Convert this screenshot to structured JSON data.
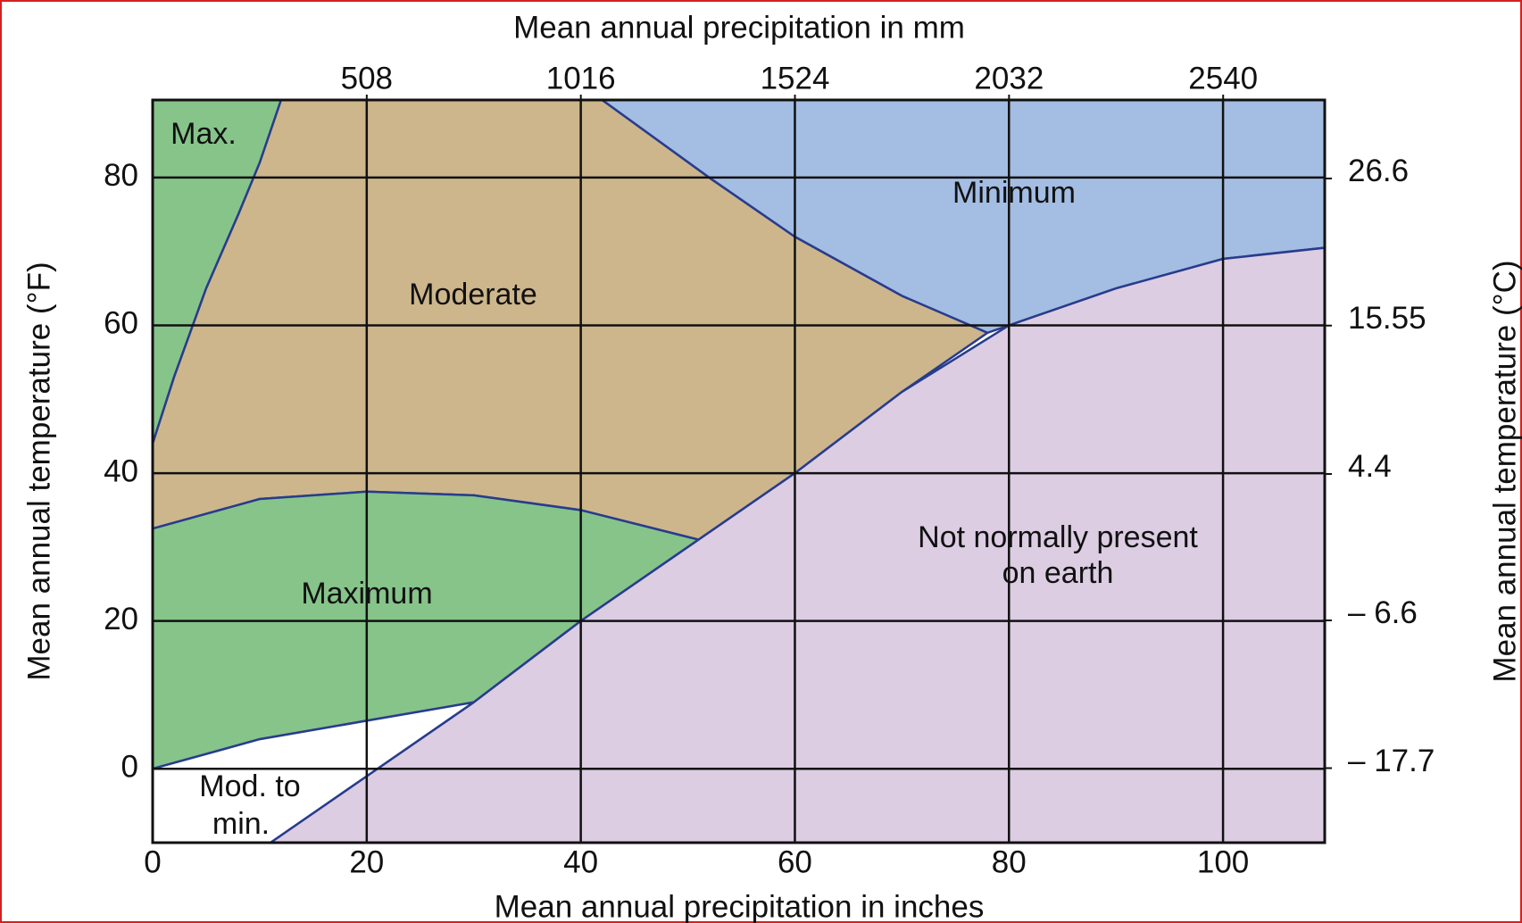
{
  "chart_data": {
    "type": "region",
    "x_label": "Mean annual precipitation in inches",
    "x2_label": "Mean annual precipitation in mm",
    "y_label": "Mean annual temperature (°F)",
    "y2_label": "Mean annual temperature (°C)",
    "xlim": [
      0,
      109.5
    ],
    "xticks": [
      0,
      20,
      40,
      60,
      80,
      100
    ],
    "x2lim": [
      0,
      2781
    ],
    "x2ticks": [
      508,
      1016,
      1524,
      2032,
      2540
    ],
    "ylim": [
      -10,
      90.5
    ],
    "yticks": [
      0,
      20,
      40,
      60,
      80
    ],
    "y2lim": [
      -23.3,
      32.5
    ],
    "y2ticks": [
      26.6,
      15.55,
      4.4,
      {
        "value": -6.6,
        "label": "– 6.6"
      },
      {
        "value": -17.7,
        "label": "– 17.7"
      }
    ],
    "grid": true,
    "regions": [
      {
        "name_lines": [
          "Max."
        ],
        "color": "#86c48a",
        "x": [
          0,
          2,
          5,
          8,
          10,
          12,
          0
        ],
        "y": [
          44,
          53,
          65,
          75,
          82,
          90.5,
          90.5
        ]
      },
      {
        "name_lines": [
          "Moderate"
        ],
        "color": "#cdb68c",
        "x": [
          0,
          2,
          5,
          8,
          10,
          12,
          42,
          52,
          60,
          70,
          78,
          70,
          60,
          51,
          40,
          30,
          20,
          10,
          0
        ],
        "y": [
          44,
          53,
          65,
          75,
          82,
          90.5,
          90.5,
          80,
          72,
          64,
          59,
          51,
          40,
          31,
          35,
          37,
          37.5,
          36.5,
          32.5
        ]
      },
      {
        "name_lines": [
          "Minimum"
        ],
        "color": "#a3bde3",
        "x": [
          42,
          109.5,
          109.5,
          100,
          90,
          80,
          78,
          70,
          60,
          52
        ],
        "y": [
          90.5,
          90.5,
          70.5,
          69,
          65,
          60,
          59,
          64,
          72,
          80
        ]
      },
      {
        "name_lines": [
          "Maximum"
        ],
        "color": "#86c48a",
        "x": [
          0,
          10,
          20,
          30,
          40,
          51,
          40,
          30,
          20,
          10,
          0
        ],
        "y": [
          0,
          4,
          6.5,
          9,
          20,
          31,
          35,
          37,
          37.5,
          36.5,
          32.5
        ]
      },
      {
        "name_lines": [
          "Not normally present",
          "on earth"
        ],
        "color": "#dccde3",
        "x": [
          11,
          109.5,
          109.5,
          100,
          90,
          80,
          70,
          60,
          50,
          40,
          30,
          20
        ],
        "y": [
          -10,
          -10,
          70.5,
          69,
          65,
          60,
          51,
          40,
          30,
          20,
          9,
          -1
        ]
      },
      {
        "name_lines": [
          "Mod. to",
          "min."
        ],
        "color": "#ffffff",
        "x": [
          0,
          10,
          20,
          30,
          20,
          11,
          0
        ],
        "y": [
          0,
          4,
          6.5,
          9,
          -1,
          -10,
          -10
        ]
      }
    ]
  }
}
